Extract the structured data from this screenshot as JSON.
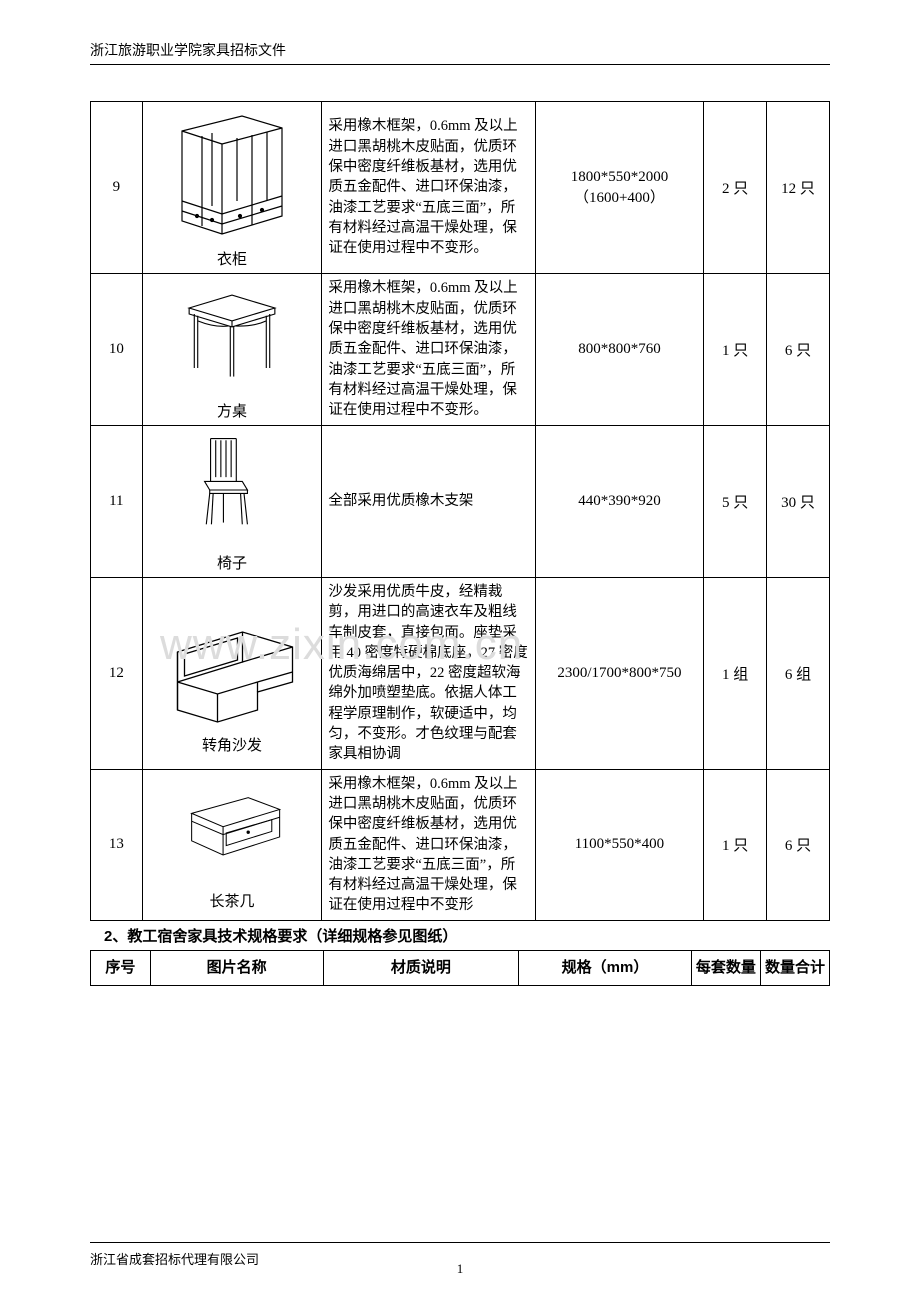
{
  "header": "浙江旅游职业学院家具招标文件",
  "watermark": "www.zixin.com.cn",
  "footer_left": "浙江省成套招标代理有限公司",
  "page_number": "1",
  "section2_title": "2、教工宿舍家具技术规格要求（详细规格参见图纸）",
  "header2": {
    "c1": "序号",
    "c2": "图片名称",
    "c3": "材质说明",
    "c4": "规格（mm）",
    "c5": "每套数量",
    "c6": "数量合计"
  },
  "desc_long": "采用橡木框架，0.6mm 及以上进口黑胡桃木皮贴面，优质环保中密度纤维板基材，选用优质五金配件、进口环保油漆，油漆工艺要求“五底三面”，所有材料经过高温干燥处理，保证在使用过程中不变形。",
  "desc_long2": "采用橡木框架，0.6mm 及以上进口黑胡桃木皮贴面，优质环保中密度纤维板基材，选用优质五金配件、进口环保油漆，油漆工艺要求“五底三面”，所有材料经过高温干燥处理，保证在使用过程中不变形",
  "rows": [
    {
      "idx": "9",
      "name": "衣柜",
      "desc_key": "desc_long",
      "spec": "1800*550*2000（1600+400）",
      "qty1": "2 只",
      "qty2": "12 只",
      "svg": "wardrobe"
    },
    {
      "idx": "10",
      "name": "方桌",
      "desc_key": "desc_long",
      "spec": "800*800*760",
      "qty1": "1 只",
      "qty2": "6 只",
      "svg": "table"
    },
    {
      "idx": "11",
      "name": "椅子",
      "desc": "全部采用优质橡木支架",
      "spec": "440*390*920",
      "qty1": "5 只",
      "qty2": "30 只",
      "svg": "chair"
    },
    {
      "idx": "12",
      "name": "转角沙发",
      "desc": "沙发采用优质牛皮，经精裁剪，用进口的高速衣车及粗线车制皮套，直接包面。座垫采用 40 密度特硬棉底座，27 密度优质海绵居中，22 密度超软海绵外加喷塑垫底。依据人体工程学原理制作，软硬适中，均匀，不变形。才色纹理与配套家具相协调",
      "spec": "2300/1700*800*750",
      "qty1": "1 组",
      "qty2": "6 组",
      "svg": "sofa"
    },
    {
      "idx": "13",
      "name": "长茶几",
      "desc_key": "desc_long2",
      "spec": "1100*550*400",
      "qty1": "1 只",
      "qty2": "6 只",
      "svg": "coffeetable"
    }
  ]
}
